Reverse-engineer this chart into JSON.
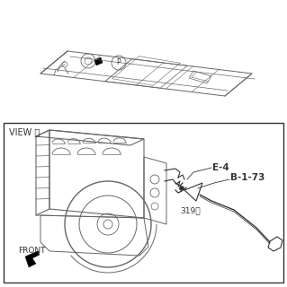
{
  "bg_color": "#ffffff",
  "border_color": "#333333",
  "line_color": "#666666",
  "dark_line": "#333333",
  "label_e4": "E-4",
  "label_b173": "B-1-73",
  "label_319": "319Ⓑ",
  "label_view": "VIEW Ⓟ",
  "label_front": "FRONT"
}
